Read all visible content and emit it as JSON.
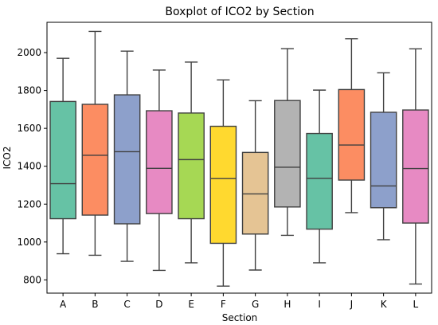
{
  "chart_data": {
    "type": "box",
    "title": "Boxplot of ICO2 by Section",
    "xlabel": "Section",
    "ylabel": "ICO2",
    "ylim": [
      730,
      2160
    ],
    "yticks": [
      800,
      1000,
      1200,
      1400,
      1600,
      1800,
      2000
    ],
    "grid": false,
    "categories": [
      "A",
      "B",
      "C",
      "D",
      "E",
      "F",
      "G",
      "H",
      "I",
      "J",
      "K",
      "L"
    ],
    "series": [
      {
        "category": "A",
        "whisker_low": 938,
        "q1": 1123,
        "median": 1308,
        "q3": 1742,
        "whisker_high": 1970,
        "color": "#66c2a5"
      },
      {
        "category": "B",
        "whisker_low": 930,
        "q1": 1142,
        "median": 1458,
        "q3": 1727,
        "whisker_high": 2112,
        "color": "#fc8d62"
      },
      {
        "category": "C",
        "whisker_low": 898,
        "q1": 1096,
        "median": 1477,
        "q3": 1777,
        "whisker_high": 2008,
        "color": "#8da0cb"
      },
      {
        "category": "D",
        "whisker_low": 850,
        "q1": 1150,
        "median": 1389,
        "q3": 1693,
        "whisker_high": 1908,
        "color": "#e78ac3"
      },
      {
        "category": "E",
        "whisker_low": 890,
        "q1": 1123,
        "median": 1435,
        "q3": 1681,
        "whisker_high": 1950,
        "color": "#a6d854"
      },
      {
        "category": "F",
        "whisker_low": 767,
        "q1": 993,
        "median": 1335,
        "q3": 1611,
        "whisker_high": 1856,
        "color": "#ffd92f"
      },
      {
        "category": "G",
        "whisker_low": 852,
        "q1": 1042,
        "median": 1254,
        "q3": 1473,
        "whisker_high": 1746,
        "color": "#e5c494"
      },
      {
        "category": "H",
        "whisker_low": 1035,
        "q1": 1185,
        "median": 1395,
        "q3": 1747,
        "whisker_high": 2021,
        "color": "#b3b3b3"
      },
      {
        "category": "I",
        "whisker_low": 890,
        "q1": 1068,
        "median": 1336,
        "q3": 1573,
        "whisker_high": 1802,
        "color": "#66c2a5"
      },
      {
        "category": "J",
        "whisker_low": 1155,
        "q1": 1327,
        "median": 1512,
        "q3": 1805,
        "whisker_high": 2073,
        "color": "#fc8d62"
      },
      {
        "category": "K",
        "whisker_low": 1012,
        "q1": 1181,
        "median": 1296,
        "q3": 1685,
        "whisker_high": 1893,
        "color": "#8da0cb"
      },
      {
        "category": "L",
        "whisker_low": 778,
        "q1": 1100,
        "median": 1388,
        "q3": 1697,
        "whisker_high": 2020,
        "color": "#e78ac3"
      }
    ]
  }
}
